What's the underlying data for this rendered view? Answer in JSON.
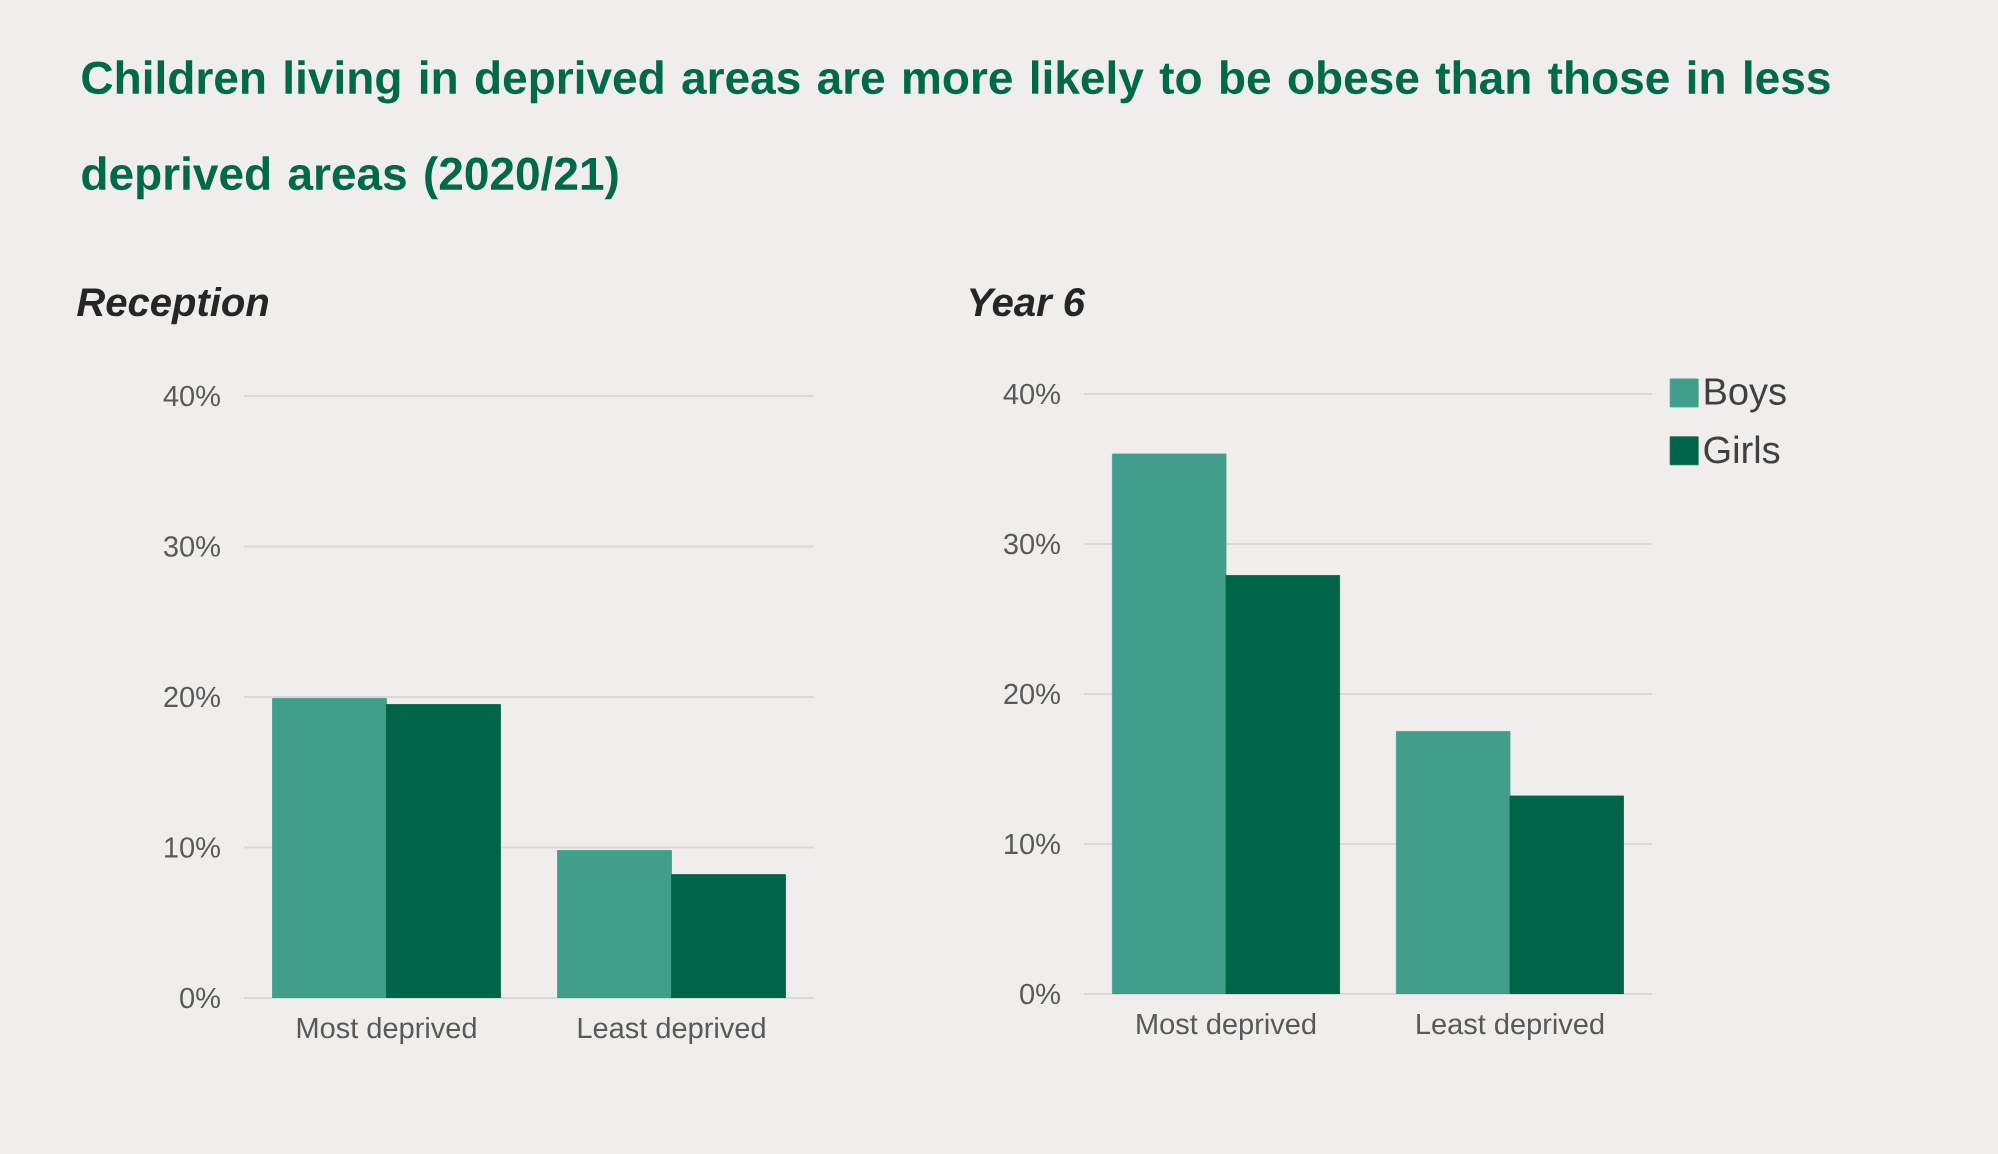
{
  "chart_data": [
    {
      "type": "bar",
      "title": "Children living in deprived areas are more likely to be obese than those in less deprived areas (2020/21)",
      "subtitle": "Reception",
      "categories": [
        "Most deprived",
        "Least deprived"
      ],
      "series": [
        {
          "color": "#419e8a",
          "values": [
            19.9,
            9.8
          ]
        },
        {
          "color": "#006548",
          "values": [
            19.5,
            8.2
          ]
        }
      ],
      "ylim": [
        0,
        40
      ],
      "yticks": [
        {
          "value": 0,
          "label": "0%"
        },
        {
          "value": 10,
          "label": "10%"
        },
        {
          "value": 20,
          "label": "20%"
        },
        {
          "value": 30,
          "label": "30%"
        },
        {
          "value": 40,
          "label": "40%"
        }
      ],
      "grid": "y",
      "legend": false
    },
    {
      "type": "bar",
      "subtitle": "Year 6",
      "categories": [
        "Most deprived",
        "Least deprived"
      ],
      "series": [
        {
          "name": "Boys",
          "color": "#419e8a",
          "values": [
            36.0,
            17.5
          ]
        },
        {
          "name": "Girls",
          "color": "#006548",
          "values": [
            27.9,
            13.2
          ]
        }
      ],
      "ylim": [
        0,
        40
      ],
      "yticks": [
        {
          "value": 0,
          "label": "0%"
        },
        {
          "value": 10,
          "label": "10%"
        },
        {
          "value": 20,
          "label": "20%"
        },
        {
          "value": 30,
          "label": "30%"
        },
        {
          "value": 40,
          "label": "40%"
        }
      ],
      "grid": "y",
      "legend": "top right"
    }
  ]
}
